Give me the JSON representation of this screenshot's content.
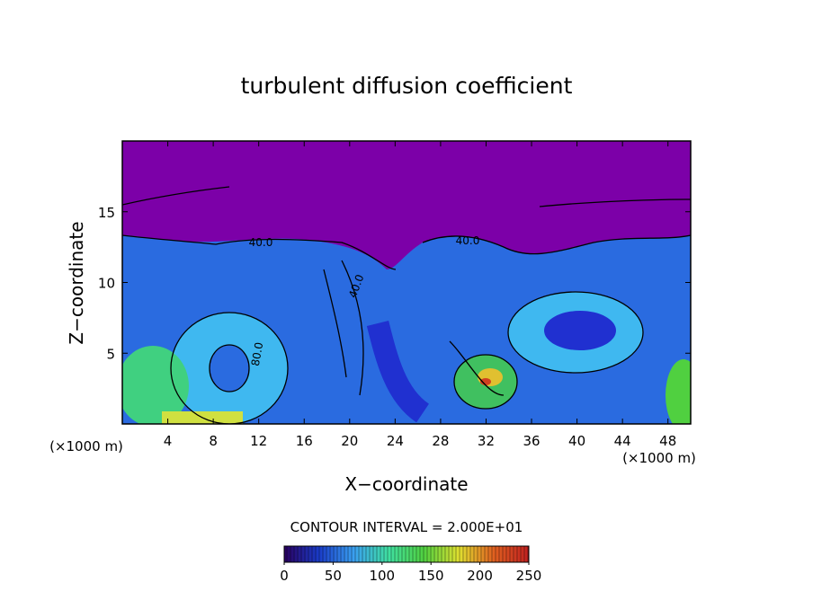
{
  "chart_data": {
    "type": "contour",
    "title": "turbulent diffusion coefficient",
    "x_label": "X−coordinate",
    "y_label": "Z−coordinate",
    "x_unit": "(×1000 m)",
    "y_unit": "(×1000 m)",
    "xlim": [
      0,
      50
    ],
    "xticks": [
      4,
      8,
      12,
      16,
      20,
      24,
      28,
      32,
      36,
      40,
      44,
      48
    ],
    "ylim": [
      0,
      20
    ],
    "yticks": [
      5,
      10,
      15
    ],
    "contour_labels": [
      "40.0",
      "80.0",
      "40.0",
      "40.0"
    ],
    "colorbar": {
      "label": "CONTOUR INTERVAL = 2.000E+01",
      "lim": [
        0,
        250
      ],
      "ticks": [
        0,
        50,
        100,
        150,
        200,
        250
      ],
      "colors": [
        "#2a0060",
        "#1a3cc8",
        "#3aa0f0",
        "#40e0a0",
        "#50d040",
        "#e0e030",
        "#e06020",
        "#c02020"
      ]
    }
  }
}
